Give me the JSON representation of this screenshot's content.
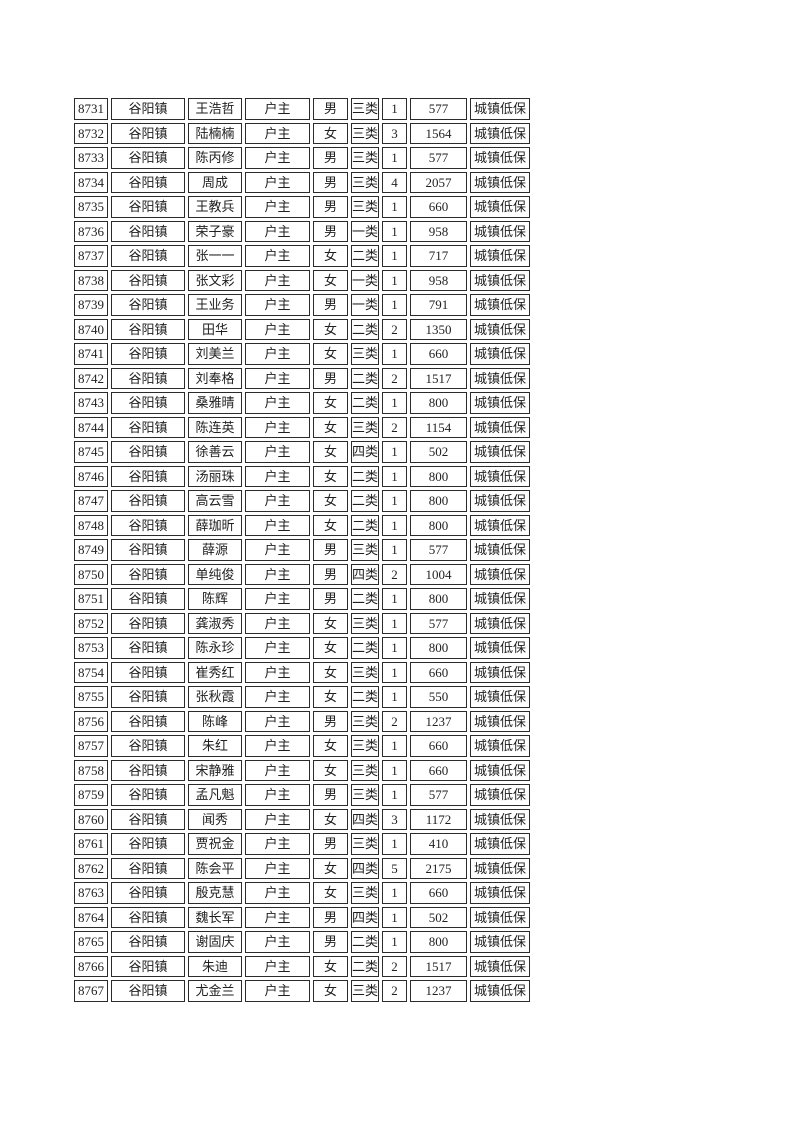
{
  "document": {
    "background_color": "#ffffff",
    "border_color": "#2b2b2b",
    "text_color": "#1f1f1f"
  },
  "table": {
    "columns": [
      "serial-number",
      "town",
      "name",
      "relation-to-household",
      "gender",
      "category",
      "household-count",
      "amount",
      "assistance-type"
    ],
    "rows": [
      [
        "8731",
        "谷阳镇",
        "王浩哲",
        "户主",
        "男",
        "三类",
        "1",
        "577",
        "城镇低保"
      ],
      [
        "8732",
        "谷阳镇",
        "陆楠楠",
        "户主",
        "女",
        "三类",
        "3",
        "1564",
        "城镇低保"
      ],
      [
        "8733",
        "谷阳镇",
        "陈丙修",
        "户主",
        "男",
        "三类",
        "1",
        "577",
        "城镇低保"
      ],
      [
        "8734",
        "谷阳镇",
        "周成",
        "户主",
        "男",
        "三类",
        "4",
        "2057",
        "城镇低保"
      ],
      [
        "8735",
        "谷阳镇",
        "王教兵",
        "户主",
        "男",
        "三类",
        "1",
        "660",
        "城镇低保"
      ],
      [
        "8736",
        "谷阳镇",
        "荣子豪",
        "户主",
        "男",
        "一类",
        "1",
        "958",
        "城镇低保"
      ],
      [
        "8737",
        "谷阳镇",
        "张一一",
        "户主",
        "女",
        "二类",
        "1",
        "717",
        "城镇低保"
      ],
      [
        "8738",
        "谷阳镇",
        "张文彩",
        "户主",
        "女",
        "一类",
        "1",
        "958",
        "城镇低保"
      ],
      [
        "8739",
        "谷阳镇",
        "王业务",
        "户主",
        "男",
        "一类",
        "1",
        "791",
        "城镇低保"
      ],
      [
        "8740",
        "谷阳镇",
        "田华",
        "户主",
        "女",
        "二类",
        "2",
        "1350",
        "城镇低保"
      ],
      [
        "8741",
        "谷阳镇",
        "刘美兰",
        "户主",
        "女",
        "三类",
        "1",
        "660",
        "城镇低保"
      ],
      [
        "8742",
        "谷阳镇",
        "刘奉格",
        "户主",
        "男",
        "二类",
        "2",
        "1517",
        "城镇低保"
      ],
      [
        "8743",
        "谷阳镇",
        "桑雅晴",
        "户主",
        "女",
        "二类",
        "1",
        "800",
        "城镇低保"
      ],
      [
        "8744",
        "谷阳镇",
        "陈连英",
        "户主",
        "女",
        "三类",
        "2",
        "1154",
        "城镇低保"
      ],
      [
        "8745",
        "谷阳镇",
        "徐善云",
        "户主",
        "女",
        "四类",
        "1",
        "502",
        "城镇低保"
      ],
      [
        "8746",
        "谷阳镇",
        "汤丽珠",
        "户主",
        "女",
        "二类",
        "1",
        "800",
        "城镇低保"
      ],
      [
        "8747",
        "谷阳镇",
        "高云雪",
        "户主",
        "女",
        "二类",
        "1",
        "800",
        "城镇低保"
      ],
      [
        "8748",
        "谷阳镇",
        "薛珈昕",
        "户主",
        "女",
        "二类",
        "1",
        "800",
        "城镇低保"
      ],
      [
        "8749",
        "谷阳镇",
        "薛源",
        "户主",
        "男",
        "三类",
        "1",
        "577",
        "城镇低保"
      ],
      [
        "8750",
        "谷阳镇",
        "单纯俊",
        "户主",
        "男",
        "四类",
        "2",
        "1004",
        "城镇低保"
      ],
      [
        "8751",
        "谷阳镇",
        "陈辉",
        "户主",
        "男",
        "二类",
        "1",
        "800",
        "城镇低保"
      ],
      [
        "8752",
        "谷阳镇",
        "龚淑秀",
        "户主",
        "女",
        "三类",
        "1",
        "577",
        "城镇低保"
      ],
      [
        "8753",
        "谷阳镇",
        "陈永珍",
        "户主",
        "女",
        "二类",
        "1",
        "800",
        "城镇低保"
      ],
      [
        "8754",
        "谷阳镇",
        "崔秀红",
        "户主",
        "女",
        "三类",
        "1",
        "660",
        "城镇低保"
      ],
      [
        "8755",
        "谷阳镇",
        "张秋霞",
        "户主",
        "女",
        "二类",
        "1",
        "550",
        "城镇低保"
      ],
      [
        "8756",
        "谷阳镇",
        "陈峰",
        "户主",
        "男",
        "三类",
        "2",
        "1237",
        "城镇低保"
      ],
      [
        "8757",
        "谷阳镇",
        "朱红",
        "户主",
        "女",
        "三类",
        "1",
        "660",
        "城镇低保"
      ],
      [
        "8758",
        "谷阳镇",
        "宋静雅",
        "户主",
        "女",
        "三类",
        "1",
        "660",
        "城镇低保"
      ],
      [
        "8759",
        "谷阳镇",
        "孟凡魁",
        "户主",
        "男",
        "三类",
        "1",
        "577",
        "城镇低保"
      ],
      [
        "8760",
        "谷阳镇",
        "闻秀",
        "户主",
        "女",
        "四类",
        "3",
        "1172",
        "城镇低保"
      ],
      [
        "8761",
        "谷阳镇",
        "贾祝金",
        "户主",
        "男",
        "三类",
        "1",
        "410",
        "城镇低保"
      ],
      [
        "8762",
        "谷阳镇",
        "陈会平",
        "户主",
        "女",
        "四类",
        "5",
        "2175",
        "城镇低保"
      ],
      [
        "8763",
        "谷阳镇",
        "殷克慧",
        "户主",
        "女",
        "三类",
        "1",
        "660",
        "城镇低保"
      ],
      [
        "8764",
        "谷阳镇",
        "魏长军",
        "户主",
        "男",
        "四类",
        "1",
        "502",
        "城镇低保"
      ],
      [
        "8765",
        "谷阳镇",
        "谢固庆",
        "户主",
        "男",
        "二类",
        "1",
        "800",
        "城镇低保"
      ],
      [
        "8766",
        "谷阳镇",
        "朱迪",
        "户主",
        "女",
        "二类",
        "2",
        "1517",
        "城镇低保"
      ],
      [
        "8767",
        "谷阳镇",
        "尤金兰",
        "户主",
        "女",
        "三类",
        "2",
        "1237",
        "城镇低保"
      ]
    ]
  }
}
